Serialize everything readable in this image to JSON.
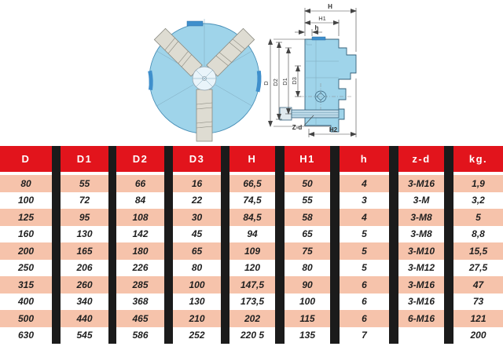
{
  "drawing": {
    "labels": {
      "H": "H",
      "H1": "H1",
      "h": "h",
      "D": "D",
      "D2": "D2",
      "D1": "D1",
      "D3": "D3",
      "Zd": "Z-d",
      "H2": "H2"
    }
  },
  "table": {
    "headers": [
      "D",
      "D1",
      "D2",
      "D3",
      "H",
      "H1",
      "h",
      "z-d",
      "kg."
    ],
    "rows": [
      [
        "80",
        "55",
        "66",
        "16",
        "66,5",
        "50",
        "4",
        "3-M16",
        "1,9"
      ],
      [
        "100",
        "72",
        "84",
        "22",
        "74,5",
        "55",
        "3",
        "3-M",
        "3,2"
      ],
      [
        "125",
        "95",
        "108",
        "30",
        "84,5",
        "58",
        "4",
        "3-M8",
        "5"
      ],
      [
        "160",
        "130",
        "142",
        "45",
        "94",
        "65",
        "5",
        "3-M8",
        "8,8"
      ],
      [
        "200",
        "165",
        "180",
        "65",
        "109",
        "75",
        "5",
        "3-M10",
        "15,5"
      ],
      [
        "250",
        "206",
        "226",
        "80",
        "120",
        "80",
        "5",
        "3-M12",
        "27,5"
      ],
      [
        "315",
        "260",
        "285",
        "100",
        "147,5",
        "90",
        "6",
        "3-M16",
        "47"
      ],
      [
        "400",
        "340",
        "368",
        "130",
        "173,5",
        "100",
        "6",
        "3-M16",
        "73"
      ],
      [
        "500",
        "440",
        "465",
        "210",
        "202",
        "115",
        "6",
        "6-M16",
        "121"
      ],
      [
        "630",
        "545",
        "586",
        "252",
        "220 5",
        "135",
        "7",
        "",
        "200"
      ]
    ]
  },
  "colors": {
    "header_red": "#e2141c",
    "row_salmon": "#f6c3ab",
    "bar_black": "#1b1b1b",
    "body_blue": "#9fd4ea",
    "accent_blue": "#3f8fcc",
    "jaw_gray": "#dedcd2"
  }
}
